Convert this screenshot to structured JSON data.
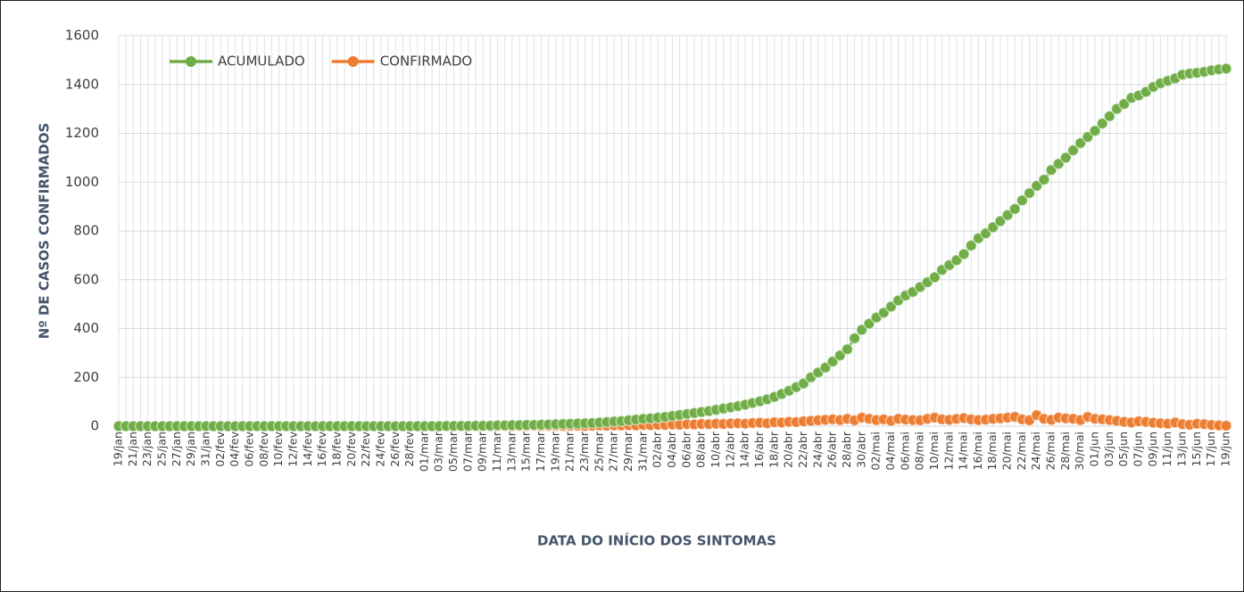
{
  "chart_data": {
    "type": "line",
    "y_label": "Nº DE CASOS CONFIRMADOS",
    "x_label": "DATA DO INÍCIO DOS SINTOMAS",
    "legend": "top-left",
    "grid": true,
    "ylim": [
      0,
      1600
    ],
    "yticks": [
      0,
      200,
      400,
      600,
      800,
      1000,
      1200,
      1400,
      1600
    ],
    "categories": [
      "19/jan",
      null,
      "21/jan",
      null,
      "23/jan",
      null,
      "25/jan",
      null,
      "27/jan",
      null,
      "29/jan",
      null,
      "31/jan",
      null,
      "02/fev",
      null,
      "04/fev",
      null,
      "06/fev",
      null,
      "08/fev",
      null,
      "10/fev",
      null,
      "12/fev",
      null,
      "14/fev",
      null,
      "16/fev",
      null,
      "18/fev",
      null,
      "20/fev",
      null,
      "22/fev",
      null,
      "24/fev",
      null,
      "26/fev",
      null,
      "28/fev",
      null,
      "01/mar",
      null,
      "03/mar",
      null,
      "05/mar",
      null,
      "07/mar",
      null,
      "09/mar",
      null,
      "11/mar",
      null,
      "13/mar",
      null,
      "15/mar",
      null,
      "17/mar",
      null,
      "19/mar",
      null,
      "21/mar",
      null,
      "23/mar",
      null,
      "25/mar",
      null,
      "27/mar",
      null,
      "29/mar",
      null,
      "31/mar",
      null,
      "02/abr",
      null,
      "04/abr",
      null,
      "06/abr",
      null,
      "08/abr",
      null,
      "10/abr",
      null,
      "12/abr",
      null,
      "14/abr",
      null,
      "16/abr",
      null,
      "18/abr",
      null,
      "20/abr",
      null,
      "22/abr",
      null,
      "24/abr",
      null,
      "26/abr",
      null,
      "28/abr",
      null,
      "30/abr",
      null,
      "02/mai",
      null,
      "04/mai",
      null,
      "06/mai",
      null,
      "08/mai",
      null,
      "10/mai",
      null,
      "12/mai",
      null,
      "14/mai",
      null,
      "16/mai",
      null,
      "18/mai",
      null,
      "20/mai",
      null,
      "22/mai",
      null,
      "24/mai",
      null,
      "26/mai",
      null,
      "28/mai",
      null,
      "30/mai",
      null,
      "01/jun",
      null,
      "03/jun",
      null,
      "05/jun",
      null,
      "07/jun",
      null,
      "09/jun",
      null,
      "11/jun",
      null,
      "13/jun",
      null,
      "15/jun",
      null,
      "17/jun",
      null,
      "19/jun"
    ],
    "series": [
      {
        "name": "ACUMULADO",
        "color": "#70ad47",
        "values": [
          0,
          0,
          0,
          0,
          0,
          0,
          0,
          0,
          0,
          0,
          0,
          0,
          0,
          0,
          0,
          0,
          0,
          0,
          0,
          0,
          0,
          0,
          0,
          0,
          0,
          0,
          0,
          0,
          0,
          0,
          0,
          0,
          0,
          0,
          0,
          0,
          0,
          0,
          0,
          0,
          0,
          0,
          0,
          0,
          0,
          1,
          1,
          1,
          1,
          2,
          2,
          2,
          3,
          3,
          4,
          4,
          5,
          5,
          6,
          7,
          8,
          9,
          10,
          11,
          12,
          13,
          15,
          17,
          19,
          21,
          24,
          27,
          30,
          32,
          35,
          38,
          42,
          46,
          50,
          54,
          58,
          62,
          67,
          72,
          77,
          82,
          88,
          95,
          102,
          110,
          120,
          132,
          145,
          160,
          175,
          200,
          220,
          240,
          265,
          290,
          315,
          360,
          395,
          420,
          445,
          465,
          490,
          515,
          535,
          550,
          570,
          590,
          610,
          640,
          660,
          680,
          705,
          740,
          770,
          790,
          815,
          840,
          865,
          890,
          925,
          955,
          985,
          1010,
          1050,
          1075,
          1100,
          1130,
          1160,
          1185,
          1210,
          1240,
          1270,
          1300,
          1320,
          1345,
          1355,
          1370,
          1390,
          1405,
          1415,
          1425,
          1440,
          1445,
          1448,
          1452,
          1458,
          1462,
          1465
        ]
      },
      {
        "name": "CONFIRMADO",
        "color": "#ed7d31",
        "values": [
          0,
          0,
          0,
          0,
          0,
          0,
          0,
          0,
          0,
          0,
          0,
          0,
          0,
          0,
          0,
          0,
          0,
          0,
          0,
          0,
          0,
          0,
          0,
          0,
          0,
          0,
          0,
          0,
          0,
          0,
          0,
          0,
          0,
          0,
          0,
          0,
          0,
          0,
          0,
          0,
          0,
          0,
          0,
          0,
          1,
          0,
          0,
          1,
          0,
          0,
          1,
          0,
          1,
          1,
          0,
          1,
          1,
          2,
          1,
          1,
          2,
          1,
          2,
          2,
          1,
          2,
          3,
          2,
          3,
          3,
          4,
          3,
          5,
          4,
          6,
          5,
          7,
          6,
          8,
          7,
          9,
          8,
          10,
          9,
          11,
          12,
          10,
          13,
          14,
          12,
          16,
          15,
          18,
          17,
          20,
          22,
          24,
          26,
          28,
          25,
          30,
          24,
          35,
          30,
          25,
          28,
          22,
          30,
          27,
          25,
          24,
          30,
          35,
          28,
          26,
          30,
          33,
          28,
          25,
          27,
          30,
          32,
          35,
          38,
          28,
          24,
          45,
          30,
          26,
          35,
          32,
          30,
          25,
          38,
          30,
          28,
          25,
          22,
          18,
          15,
          20,
          18,
          14,
          12,
          10,
          15,
          8,
          6,
          10,
          8,
          5,
          3,
          2
        ]
      }
    ]
  }
}
